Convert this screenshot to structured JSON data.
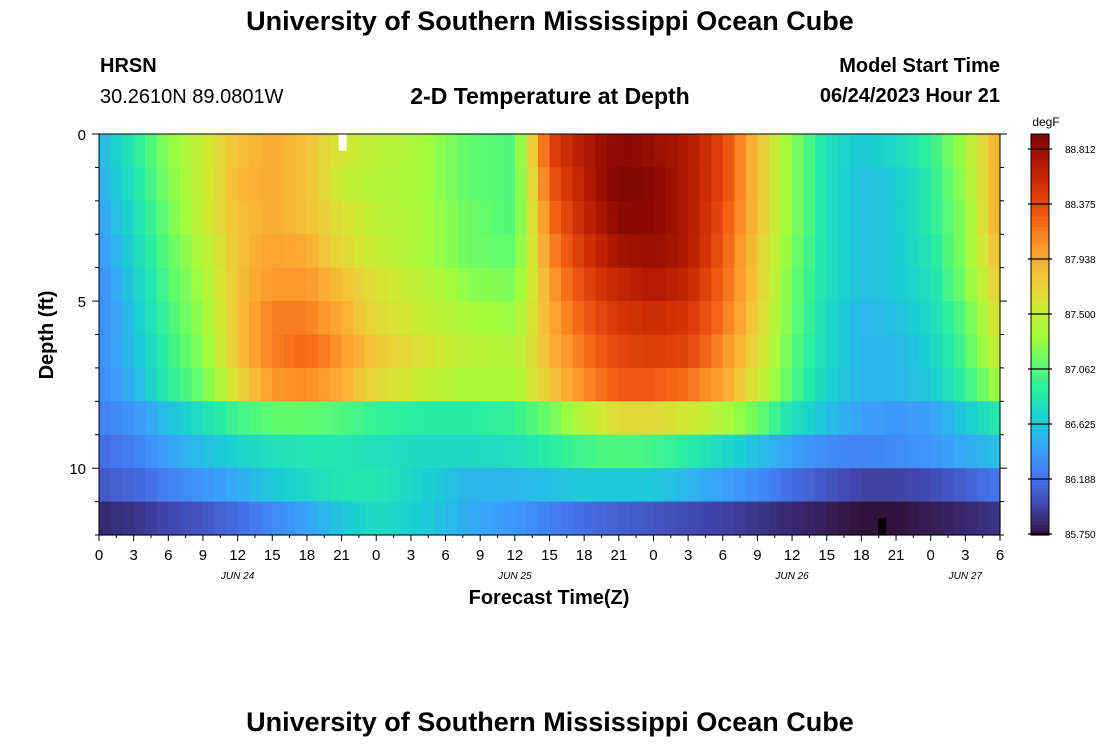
{
  "header": {
    "title": "University of Southern Mississippi Ocean Cube",
    "station": "HRSN",
    "coords": "30.2610N  89.0801W",
    "subtitle": "2-D Temperature at Depth",
    "model_label": "Model Start Time",
    "model_time": "06/24/2023 Hour 21"
  },
  "footer": {
    "title": "University of Southern Mississippi Ocean Cube"
  },
  "chart_data": {
    "type": "heatmap",
    "title": "2-D Temperature at Depth",
    "xlabel": "Forecast Time(Z)",
    "ylabel": "Depth (ft)",
    "xlim": [
      0,
      78
    ],
    "ylim": [
      0,
      12
    ],
    "x_ticks": [
      0,
      3,
      6,
      9,
      12,
      15,
      18,
      21,
      24,
      27,
      30,
      33,
      36,
      39,
      42,
      45,
      48,
      51,
      54,
      57,
      60,
      63,
      66,
      69,
      72,
      75,
      78
    ],
    "x_tick_labels": [
      "0",
      "3",
      "6",
      "9",
      "12",
      "15",
      "18",
      "21",
      "0",
      "3",
      "6",
      "9",
      "12",
      "15",
      "18",
      "21",
      "0",
      "3",
      "6",
      "9",
      "12",
      "15",
      "18",
      "21",
      "0",
      "3",
      "6"
    ],
    "y_ticks": [
      0,
      5,
      10
    ],
    "y_tick_labels": [
      "0",
      "5",
      "10"
    ],
    "date_labels": [
      {
        "x": 12,
        "label": "JUN 24"
      },
      {
        "x": 36,
        "label": "JUN 25"
      },
      {
        "x": 60,
        "label": "JUN 26"
      },
      {
        "x": 75,
        "label": "JUN 27"
      }
    ],
    "depth_levels": [
      0.5,
      1.5,
      2.5,
      3.5,
      4.5,
      5.5,
      6.5,
      7.5,
      8.5,
      9.5,
      10.5,
      11.5
    ],
    "time_knots": [
      0,
      2,
      4,
      6,
      9,
      12,
      15,
      18,
      21,
      24,
      28,
      32,
      36,
      39,
      42,
      45,
      48,
      51,
      54,
      57,
      60,
      63,
      66,
      69,
      72,
      75,
      78
    ],
    "value_grid": [
      [
        86.5,
        86.7,
        86.95,
        87.2,
        87.45,
        87.75,
        87.85,
        87.75,
        87.5,
        87.4,
        87.3,
        87.05,
        87.0,
        88.3,
        88.6,
        88.75,
        88.7,
        88.6,
        88.3,
        87.75,
        87.2,
        86.75,
        86.6,
        86.7,
        86.9,
        87.3,
        87.9
      ],
      [
        86.45,
        86.65,
        86.9,
        87.15,
        87.45,
        87.8,
        87.85,
        87.75,
        87.45,
        87.35,
        87.3,
        87.05,
        87.0,
        88.2,
        88.55,
        88.8,
        88.75,
        88.6,
        88.3,
        87.75,
        87.2,
        86.75,
        86.55,
        86.6,
        86.85,
        87.25,
        87.9
      ],
      [
        86.4,
        86.6,
        86.85,
        87.1,
        87.45,
        87.75,
        87.85,
        87.75,
        87.55,
        87.4,
        87.3,
        87.1,
        87.0,
        88.1,
        88.5,
        88.75,
        88.75,
        88.6,
        88.25,
        87.75,
        87.2,
        86.75,
        86.55,
        86.6,
        86.85,
        87.2,
        87.9
      ],
      [
        86.35,
        86.55,
        86.8,
        87.05,
        87.35,
        87.75,
        87.9,
        87.85,
        87.6,
        87.45,
        87.3,
        87.1,
        87.05,
        88.0,
        88.4,
        88.65,
        88.7,
        88.6,
        88.2,
        87.7,
        87.15,
        86.75,
        86.55,
        86.6,
        86.8,
        87.2,
        87.8
      ],
      [
        86.3,
        86.5,
        86.75,
        87.0,
        87.3,
        87.75,
        87.95,
        87.95,
        87.75,
        87.55,
        87.4,
        87.2,
        87.15,
        87.9,
        88.3,
        88.5,
        88.6,
        88.5,
        88.15,
        87.7,
        87.1,
        86.75,
        86.55,
        86.6,
        86.75,
        87.15,
        87.7
      ],
      [
        86.3,
        86.45,
        86.7,
        86.95,
        87.25,
        87.75,
        88.05,
        88.05,
        87.85,
        87.6,
        87.45,
        87.3,
        87.25,
        87.85,
        88.2,
        88.4,
        88.45,
        88.4,
        88.1,
        87.65,
        87.1,
        86.7,
        86.5,
        86.55,
        86.7,
        87.05,
        87.6
      ],
      [
        86.3,
        86.45,
        86.65,
        86.9,
        87.2,
        87.75,
        88.05,
        88.15,
        87.95,
        87.7,
        87.55,
        87.4,
        87.35,
        87.8,
        88.1,
        88.3,
        88.35,
        88.3,
        88.0,
        87.6,
        87.05,
        86.7,
        86.5,
        86.5,
        86.65,
        87.0,
        87.5
      ],
      [
        86.3,
        86.4,
        86.6,
        86.85,
        87.1,
        87.6,
        87.95,
        88.0,
        87.85,
        87.6,
        87.45,
        87.3,
        87.3,
        87.7,
        88.0,
        88.2,
        88.2,
        88.1,
        87.9,
        87.5,
        87.0,
        86.65,
        86.5,
        86.5,
        86.6,
        86.9,
        87.3
      ],
      [
        86.25,
        86.3,
        86.4,
        86.55,
        86.75,
        86.95,
        87.05,
        87.05,
        87.0,
        86.9,
        86.85,
        86.85,
        86.9,
        87.1,
        87.4,
        87.6,
        87.6,
        87.5,
        87.35,
        87.1,
        86.75,
        86.55,
        86.4,
        86.35,
        86.4,
        86.6,
        86.85
      ],
      [
        86.15,
        86.2,
        86.3,
        86.4,
        86.55,
        86.65,
        86.75,
        86.8,
        86.8,
        86.75,
        86.7,
        86.7,
        86.75,
        86.85,
        86.95,
        87.0,
        86.95,
        86.85,
        86.7,
        86.55,
        86.4,
        86.3,
        86.25,
        86.3,
        86.35,
        86.45,
        86.55
      ],
      [
        86.05,
        86.1,
        86.15,
        86.25,
        86.35,
        86.45,
        86.6,
        86.7,
        86.8,
        86.8,
        86.65,
        86.5,
        86.5,
        86.55,
        86.6,
        86.6,
        86.6,
        86.5,
        86.4,
        86.3,
        86.15,
        86.05,
        85.95,
        85.95,
        86.0,
        86.1,
        86.2
      ],
      [
        85.85,
        85.88,
        85.92,
        85.98,
        86.05,
        86.15,
        86.28,
        86.42,
        86.58,
        86.72,
        86.62,
        86.45,
        86.35,
        86.25,
        86.15,
        86.1,
        86.05,
        86.0,
        85.95,
        85.9,
        85.85,
        85.8,
        85.75,
        85.75,
        85.8,
        85.85,
        85.9
      ]
    ],
    "markers": [
      {
        "x": 21.1,
        "y_from": 0,
        "y_to": 0.5,
        "color": "#ffffff"
      },
      {
        "x": 67.8,
        "y_from": 11.5,
        "y_to": 12,
        "color": "#000000"
      }
    ],
    "colorbar": {
      "unit": "degF",
      "min": 85.75,
      "max": 88.812,
      "tick_labels": [
        "88.812",
        "88.375",
        "87.938",
        "87.500",
        "87.062",
        "86.625",
        "86.188",
        "85.750"
      ],
      "colors": [
        "#30123b",
        "#4145ab",
        "#4675ed",
        "#39a2fc",
        "#1bcfd4",
        "#24eca6",
        "#61fc6c",
        "#a4fc3b",
        "#d1e834",
        "#f3c63a",
        "#fe9b2d",
        "#f36315",
        "#d93806",
        "#b11901",
        "#7a0402"
      ]
    }
  }
}
